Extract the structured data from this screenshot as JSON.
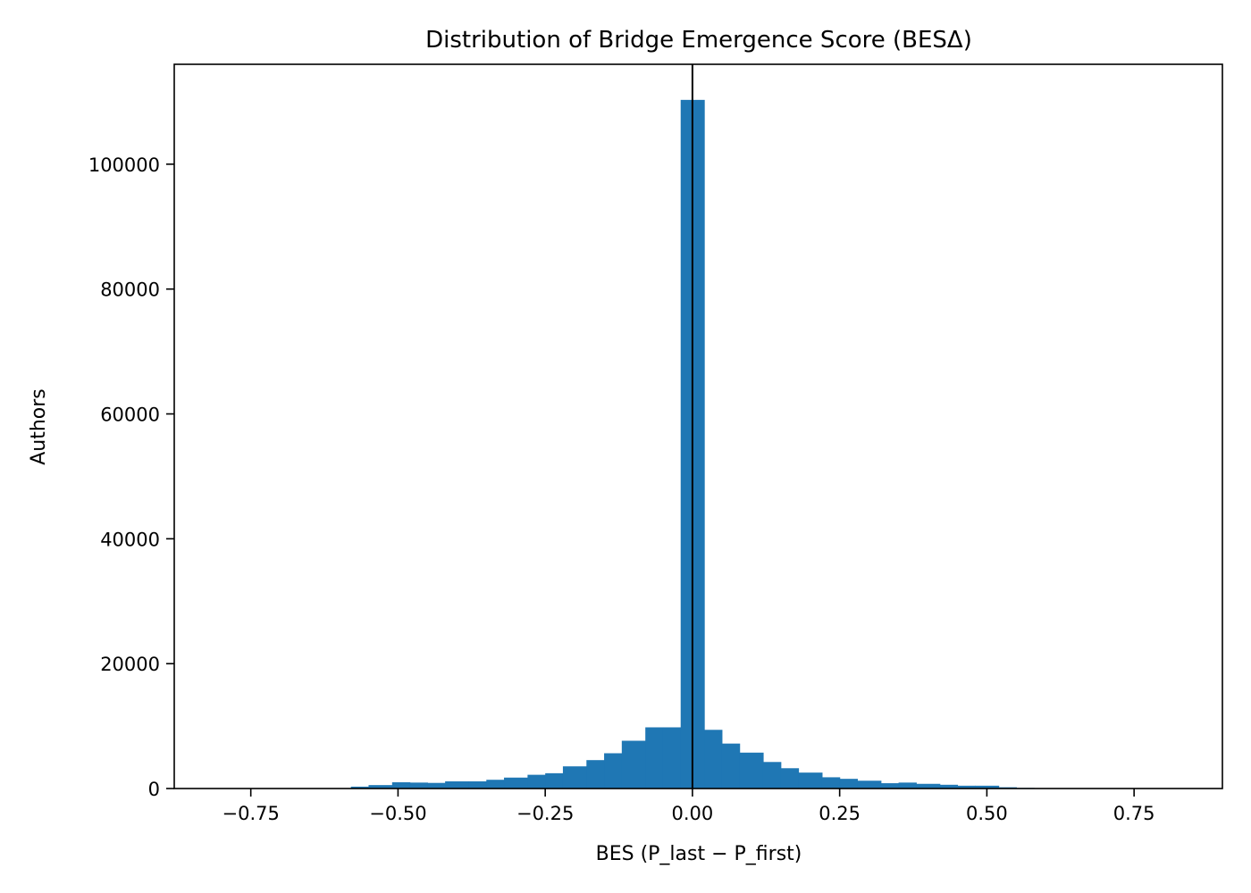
{
  "chart_data": {
    "type": "bar",
    "title": "Distribution of Bridge Emergence Score (BESΔ)",
    "xlabel": "BES (P_last − P_first)",
    "ylabel": "Authors",
    "xlim": [
      -0.88,
      0.9
    ],
    "ylim": [
      0,
      116000
    ],
    "grid": false,
    "bar_color": "#1f77b4",
    "reference_line": {
      "x": 0.0,
      "color": "#000000"
    },
    "bins": {
      "edges": [
        -0.58,
        -0.55,
        -0.51,
        -0.48,
        -0.45,
        -0.42,
        -0.38,
        -0.35,
        -0.32,
        -0.28,
        -0.25,
        -0.22,
        -0.18,
        -0.15,
        -0.12,
        -0.08,
        -0.05,
        -0.02,
        0.02,
        0.05,
        0.08,
        0.12,
        0.15,
        0.18,
        0.22,
        0.25,
        0.28,
        0.32,
        0.35,
        0.38,
        0.42,
        0.45,
        0.48,
        0.52,
        0.55,
        0.58
      ],
      "counts": [
        300,
        550,
        1000,
        950,
        900,
        1150,
        1150,
        1400,
        1750,
        2200,
        2450,
        3550,
        4550,
        5650,
        7650,
        9800,
        9800,
        110300,
        9400,
        7200,
        5750,
        4250,
        3250,
        2550,
        1800,
        1550,
        1250,
        850,
        950,
        750,
        600,
        450,
        450,
        200,
        100
      ]
    },
    "xticks": [
      {
        "value": -0.75,
        "label": "−0.75"
      },
      {
        "value": -0.5,
        "label": "−0.50"
      },
      {
        "value": -0.25,
        "label": "−0.25"
      },
      {
        "value": 0.0,
        "label": "0.00"
      },
      {
        "value": 0.25,
        "label": "0.25"
      },
      {
        "value": 0.5,
        "label": "0.50"
      },
      {
        "value": 0.75,
        "label": "0.75"
      }
    ],
    "yticks": [
      {
        "value": 0,
        "label": "0"
      },
      {
        "value": 20000,
        "label": "20000"
      },
      {
        "value": 40000,
        "label": "40000"
      },
      {
        "value": 60000,
        "label": "60000"
      },
      {
        "value": 80000,
        "label": "80000"
      },
      {
        "value": 100000,
        "label": "100000"
      }
    ]
  }
}
